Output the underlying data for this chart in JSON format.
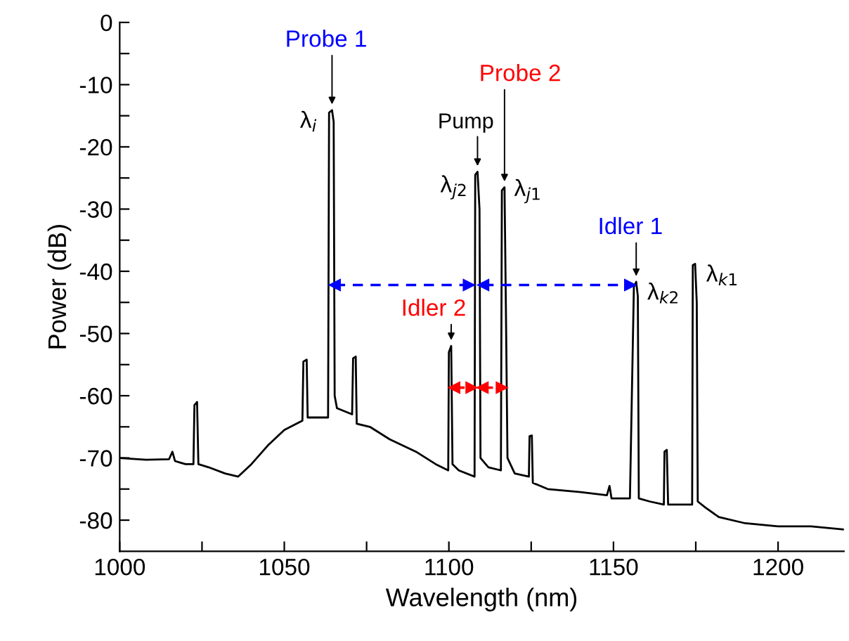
{
  "chart_data": {
    "type": "line",
    "xlabel": "Wavelength (nm)",
    "ylabel": "Power (dB)",
    "xlim": [
      1000,
      1220
    ],
    "ylim": [
      -85,
      0
    ],
    "xticks": [
      1000,
      {
        "value": 1025,
        "label": null
      },
      1050,
      {
        "value": 1075,
        "label": null
      },
      1100,
      {
        "value": 1125,
        "label": null
      },
      1150,
      {
        "value": 1175,
        "label": null
      },
      1200
    ],
    "yticks": [
      -80,
      {
        "value": -75,
        "label": null
      },
      -70,
      {
        "value": -65,
        "label": null
      },
      -60,
      {
        "value": -55,
        "label": null
      },
      -50,
      {
        "value": -45,
        "label": null
      },
      -40,
      {
        "value": -35,
        "label": null
      },
      -30,
      {
        "value": -25,
        "label": null
      },
      -20,
      {
        "value": -15,
        "label": null
      },
      -10,
      {
        "value": -5,
        "label": null
      },
      0
    ],
    "grid": false,
    "legend": false,
    "series": [
      {
        "color": "#000000",
        "line_style": "solid",
        "marker": "none",
        "x": [
          1000,
          1008,
          1015,
          1016,
          1016.8,
          1020,
          1022.4,
          1022.7,
          1023.5,
          1023.9,
          1027,
          1032,
          1036,
          1040,
          1045,
          1050,
          1055.5,
          1055.8,
          1056.8,
          1057.1,
          1063.3,
          1063.6,
          1064.5,
          1065,
          1065.3,
          1066,
          1070.6,
          1070.9,
          1071.7,
          1072,
          1076,
          1082,
          1090,
          1096,
          1099.8,
          1100,
          1100.7,
          1101.1,
          1103,
          1107.8,
          1108,
          1108.7,
          1109.3,
          1109.6,
          1112,
          1115.8,
          1116.1,
          1116.9,
          1117.3,
          1117.8,
          1120,
          1124.3,
          1124.5,
          1125.2,
          1125.5,
          1130,
          1140,
          1148,
          1148.8,
          1149.4,
          1155,
          1156.2,
          1156.9,
          1157.4,
          1157.7,
          1161,
          1165.3,
          1165.5,
          1166.2,
          1166.6,
          1170,
          1173.9,
          1174.1,
          1174.8,
          1175.3,
          1175.6,
          1178,
          1182,
          1190,
          1200,
          1210,
          1220
        ],
        "values": [
          -70,
          -70.3,
          -70.2,
          -69,
          -70.5,
          -71,
          -71,
          -61.5,
          -61,
          -71,
          -71.5,
          -72.5,
          -73,
          -71,
          -68,
          -65.5,
          -64,
          -54.5,
          -54.2,
          -63.5,
          -63.5,
          -14.5,
          -14.1,
          -16,
          -60,
          -62,
          -63,
          -54,
          -53.7,
          -64.5,
          -65,
          -67,
          -69,
          -71,
          -72,
          -53,
          -52,
          -71,
          -72,
          -73,
          -24.5,
          -24,
          -30,
          -70,
          -71.5,
          -72,
          -27,
          -26.5,
          -45,
          -70,
          -72.5,
          -73,
          -66.5,
          -66.4,
          -74,
          -75,
          -75.5,
          -76,
          -74.5,
          -76.5,
          -76.5,
          -42.5,
          -41.7,
          -44,
          -76.5,
          -77,
          -77.5,
          -69,
          -68.7,
          -77.5,
          -77.5,
          -77.5,
          -39,
          -38.8,
          -45,
          -77,
          -78,
          -79.5,
          -80.5,
          -81,
          -81,
          -81.5
        ]
      },
      {
        "color": "#0000ff",
        "line_style": "dashed",
        "marker": "triangle",
        "x": [
          1065.4,
          1106
        ],
        "values": [
          -42.2,
          -42.2
        ]
      },
      {
        "color": "#0000ff",
        "line_style": "dashed",
        "marker": "triangle",
        "x": [
          1110.5,
          1155
        ],
        "values": [
          -42.2,
          -42.2
        ]
      },
      {
        "color": "#ff0000",
        "line_style": "dashed",
        "marker": "triangle",
        "x": [
          1101.7,
          1106.8
        ],
        "values": [
          -58.7,
          -58.7
        ]
      },
      {
        "color": "#ff0000",
        "line_style": "dashed",
        "marker": "triangle",
        "x": [
          1110.3,
          1116
        ],
        "values": [
          -58.7,
          -58.7
        ]
      }
    ],
    "annotations": [
      {
        "text": "Probe 1",
        "x": 1064.5,
        "y": -14.1
      },
      {
        "text": "λ$_{i}$",
        "x": 1064.5,
        "y": -14.1
      },
      {
        "text": "Pump",
        "x": 1108.7,
        "y": -24
      },
      {
        "text": "λ$_{j2}$",
        "x": 1108.7,
        "y": -24
      },
      {
        "text": "Probe 2",
        "x": 1116.9,
        "y": -26.5
      },
      {
        "text": "λ$_{j1}$",
        "x": 1116.9,
        "y": -26.5
      },
      {
        "text": "Idler 1",
        "x": 1156.9,
        "y": -41.7
      },
      {
        "text": "λ$_{k2}$",
        "x": 1156.9,
        "y": -41.7
      },
      {
        "text": "Idler 2",
        "x": 1100.7,
        "y": -52
      },
      {
        "text": "λ$_{k1}$",
        "x": 1174.8,
        "y": -38.8
      }
    ]
  }
}
